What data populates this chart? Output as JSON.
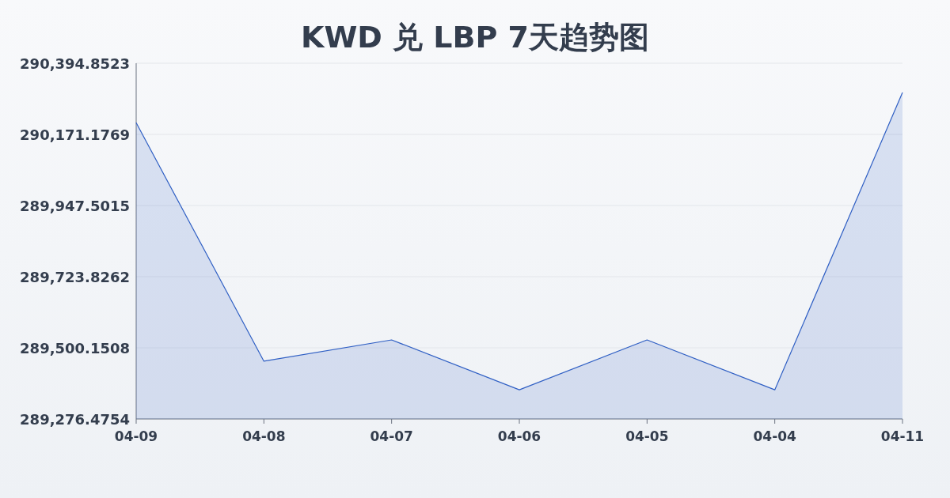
{
  "chart_data": {
    "type": "area",
    "title": "KWD 兑 LBP 7天趋势图",
    "categories": [
      "04-09",
      "04-08",
      "04-07",
      "04-06",
      "04-05",
      "04-04",
      "04-11"
    ],
    "series": [
      {
        "color": "#2f5fc4",
        "values": [
          290208,
          289458,
          289525,
          289368,
          289525,
          289368,
          290303
        ]
      }
    ],
    "ylim": [
      289276.4754,
      290394.8523
    ],
    "yticks": [
      {
        "value": 289276.4754,
        "label": "289,276.4754"
      },
      {
        "value": 289500.1508,
        "label": "289,500.1508"
      },
      {
        "value": 289723.8262,
        "label": "289,723.8262"
      },
      {
        "value": 289947.5015,
        "label": "289,947.5015"
      },
      {
        "value": 290171.1769,
        "label": "290,171.1769"
      },
      {
        "value": 290394.8523,
        "label": "290,394.8523"
      }
    ],
    "grid": "y"
  }
}
